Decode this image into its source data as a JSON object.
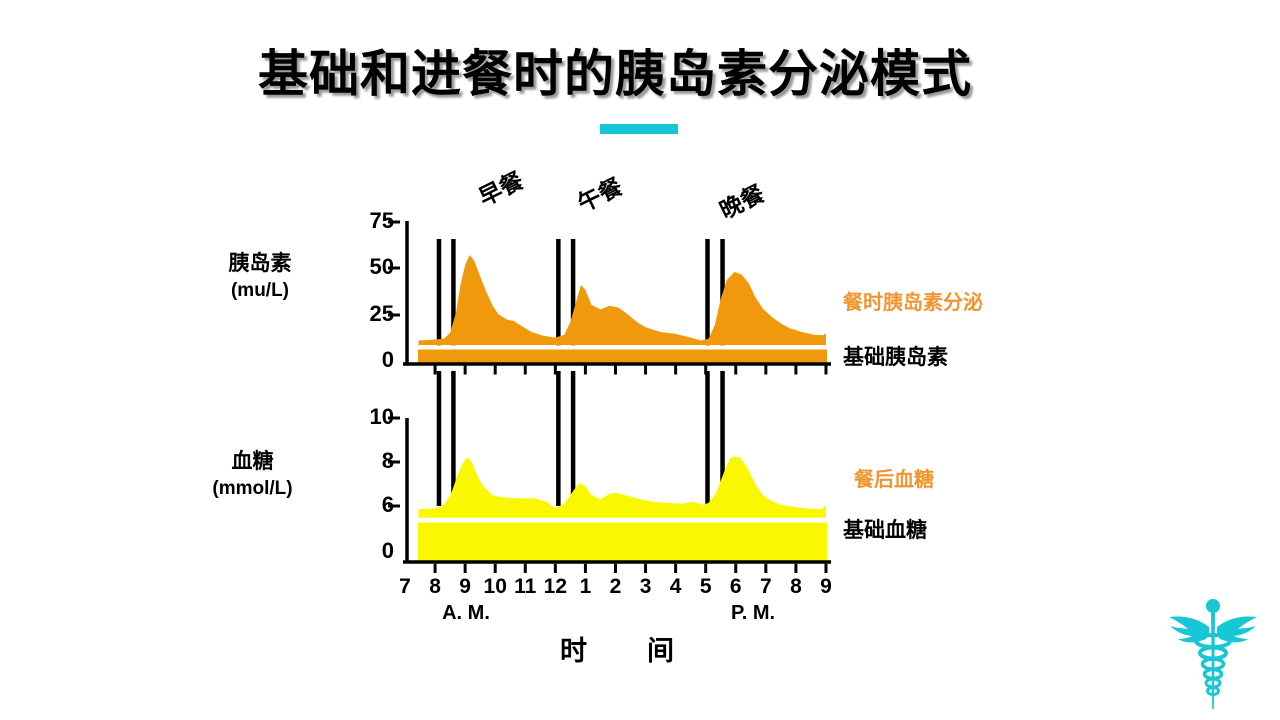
{
  "slide": {
    "title": "基础和进餐时的胰岛素分泌模式",
    "colors": {
      "accent_cyan": "#18C7D5",
      "insulin_orange": "#F0990D",
      "glucose_yellow": "#FAF800",
      "legend_orange": "#F0952F",
      "text_black": "#000000"
    }
  },
  "meals": {
    "labels": [
      "早餐",
      "午餐",
      "晚餐"
    ],
    "time_windows": [
      [
        8.13,
        8.61
      ],
      [
        12.1,
        12.59
      ],
      [
        17.06,
        17.56
      ]
    ]
  },
  "xaxis": {
    "tick_labels": [
      "7",
      "8",
      "9",
      "10",
      "11",
      "12",
      "1",
      "2",
      "3",
      "4",
      "5",
      "6",
      "7",
      "8",
      "9"
    ],
    "am_label": "A. M.",
    "pm_label": "P. M.",
    "title": "时　　间",
    "hours_range": [
      7,
      21
    ]
  },
  "chart_data": [
    {
      "id": "insulin",
      "type": "area",
      "ylabel_line1": "胰岛素",
      "ylabel_line2": "(mu/L)",
      "yticks": [
        "75",
        "50",
        "25",
        "0"
      ],
      "ylim": [
        0,
        75
      ],
      "series": [
        {
          "name": "餐时胰岛素分泌",
          "color": "#F0990D",
          "points": [
            [
              7.45,
              12
            ],
            [
              8,
              12.5
            ],
            [
              8.3,
              13
            ],
            [
              8.5,
              16
            ],
            [
              8.7,
              27
            ],
            [
              8.85,
              42
            ],
            [
              9,
              52
            ],
            [
              9.15,
              57.5
            ],
            [
              9.3,
              54.5
            ],
            [
              9.5,
              46
            ],
            [
              9.7,
              38
            ],
            [
              9.9,
              31
            ],
            [
              10.1,
              26
            ],
            [
              10.4,
              23
            ],
            [
              10.6,
              22.5
            ],
            [
              10.9,
              19.5
            ],
            [
              11.2,
              16.5
            ],
            [
              11.6,
              14.5
            ],
            [
              12,
              13.5
            ],
            [
              12.3,
              15
            ],
            [
              12.5,
              22
            ],
            [
              12.7,
              33
            ],
            [
              12.85,
              41.5
            ],
            [
              13,
              39
            ],
            [
              13.2,
              31
            ],
            [
              13.5,
              28.5
            ],
            [
              13.8,
              30.5
            ],
            [
              14.1,
              29.5
            ],
            [
              14.4,
              26
            ],
            [
              14.7,
              22
            ],
            [
              15,
              19
            ],
            [
              15.5,
              16.5
            ],
            [
              16,
              15.5
            ],
            [
              16.5,
              13.5
            ],
            [
              16.85,
              12
            ],
            [
              17.1,
              13
            ],
            [
              17.3,
              20
            ],
            [
              17.5,
              34
            ],
            [
              17.7,
              44
            ],
            [
              17.95,
              48.5
            ],
            [
              18.2,
              47
            ],
            [
              18.45,
              42
            ],
            [
              18.65,
              35
            ],
            [
              18.9,
              29
            ],
            [
              19.2,
              24.5
            ],
            [
              19.5,
              21
            ],
            [
              19.8,
              18.5
            ],
            [
              20.2,
              16.5
            ],
            [
              20.6,
              15
            ],
            [
              20.9,
              14.8
            ],
            [
              21,
              15.8
            ]
          ]
        }
      ],
      "basal": {
        "label": "基础胰岛素",
        "band_top_value": 7
      }
    },
    {
      "id": "glucose",
      "type": "area",
      "ylabel_line1": "血糖",
      "ylabel_line2": "(mmol/L)",
      "yticks": [
        "10",
        "8",
        "6",
        "0"
      ],
      "ylim": [
        0,
        10
      ],
      "series": [
        {
          "name": "餐后血糖",
          "color": "#FAF800",
          "points": [
            [
              7.45,
              5.85
            ],
            [
              8,
              5.9
            ],
            [
              8.25,
              6
            ],
            [
              8.5,
              6.45
            ],
            [
              8.7,
              7.2
            ],
            [
              8.9,
              7.9
            ],
            [
              9.05,
              8.2
            ],
            [
              9.2,
              8.05
            ],
            [
              9.4,
              7.4
            ],
            [
              9.6,
              6.9
            ],
            [
              9.9,
              6.5
            ],
            [
              10.2,
              6.4
            ],
            [
              10.7,
              6.35
            ],
            [
              11.3,
              6.35
            ],
            [
              11.7,
              6.2
            ],
            [
              12,
              5.9
            ],
            [
              12.3,
              6.1
            ],
            [
              12.6,
              6.7
            ],
            [
              12.8,
              7.05
            ],
            [
              13,
              6.9
            ],
            [
              13.2,
              6.5
            ],
            [
              13.5,
              6.3
            ],
            [
              13.8,
              6.55
            ],
            [
              14,
              6.6
            ],
            [
              14.3,
              6.5
            ],
            [
              14.7,
              6.35
            ],
            [
              15.2,
              6.2
            ],
            [
              15.7,
              6.15
            ],
            [
              16.2,
              6.1
            ],
            [
              16.6,
              6.2
            ],
            [
              16.9,
              6.05
            ],
            [
              17.1,
              6.15
            ],
            [
              17.35,
              6.6
            ],
            [
              17.6,
              7.5
            ],
            [
              17.8,
              8.15
            ],
            [
              17.95,
              8.25
            ],
            [
              18.15,
              8.2
            ],
            [
              18.4,
              7.7
            ],
            [
              18.65,
              7.0
            ],
            [
              18.9,
              6.5
            ],
            [
              19.15,
              6.25
            ],
            [
              19.5,
              6.05
            ],
            [
              20,
              5.95
            ],
            [
              20.5,
              5.88
            ],
            [
              20.85,
              5.85
            ],
            [
              21,
              6.05
            ]
          ]
        }
      ],
      "basal": {
        "label": "基础血糖",
        "band_top_value": 5.3
      }
    }
  ]
}
